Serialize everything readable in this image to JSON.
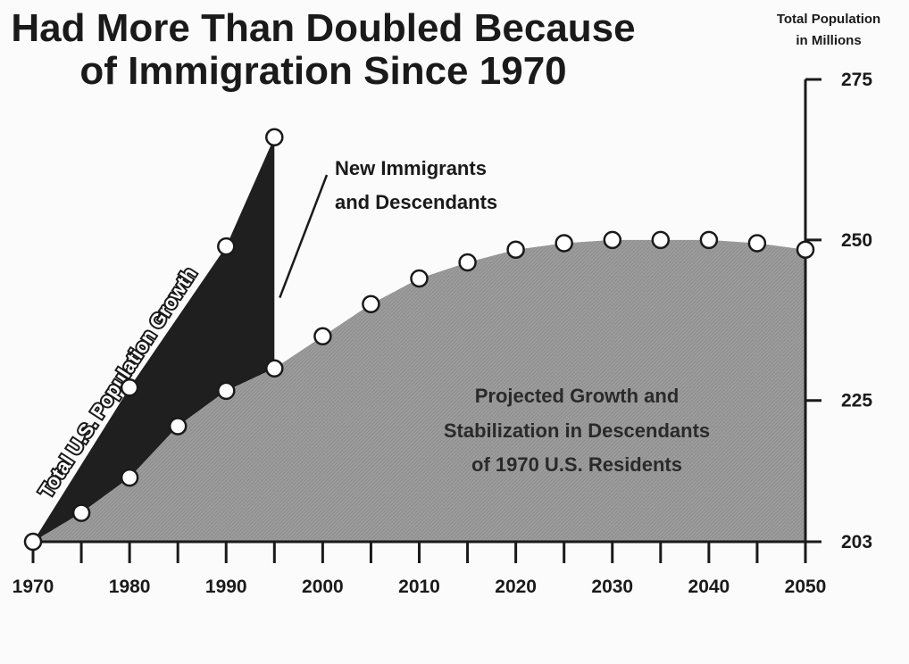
{
  "chart_data": {
    "type": "area",
    "title_lines": [
      "Had More Than Doubled Because",
      "of Immigration Since 1970"
    ],
    "ylabel_lines": [
      "Total Population",
      "in Millions"
    ],
    "x_ticks": [
      1970,
      1975,
      1980,
      1985,
      1990,
      1995,
      2000,
      2005,
      2010,
      2015,
      2020,
      2025,
      2030,
      2035,
      2040,
      2045,
      2050
    ],
    "x_tick_labels": [
      {
        "x": 1970,
        "label": "1970"
      },
      {
        "x": 1980,
        "label": "1980"
      },
      {
        "x": 1990,
        "label": "1990"
      },
      {
        "x": 2000,
        "label": "2000"
      },
      {
        "x": 2010,
        "label": "2010"
      },
      {
        "x": 2020,
        "label": "2020"
      },
      {
        "x": 2030,
        "label": "2030"
      },
      {
        "x": 2040,
        "label": "2040"
      },
      {
        "x": 2050,
        "label": "2050"
      }
    ],
    "y_ticks": [
      {
        "value": 203,
        "label": "203"
      },
      {
        "value": 225,
        "label": "225"
      },
      {
        "value": 250,
        "label": "250"
      },
      {
        "value": 275,
        "label": "275"
      }
    ],
    "xlim": [
      1970,
      2050
    ],
    "ylim": [
      203,
      275
    ],
    "series": [
      {
        "name": "Total U.S. Population Growth",
        "x": [
          1970,
          1980,
          1990,
          1995
        ],
        "y": [
          203,
          227,
          249,
          266
        ]
      },
      {
        "name": "Projected Growth and Stabilization in Descendants of 1970 U.S. Residents",
        "x": [
          1970,
          1975,
          1980,
          1985,
          1990,
          1995,
          2000,
          2005,
          2010,
          2015,
          2020,
          2025,
          2030,
          2035,
          2040,
          2045,
          2050
        ],
        "y": [
          203,
          207.5,
          213,
          221,
          226.5,
          230,
          235,
          240,
          244,
          246.5,
          248.5,
          249.5,
          250,
          250,
          250,
          249.5,
          248.5
        ]
      }
    ],
    "annotations": {
      "total_growth": "Total U.S. Population Growth",
      "immigrants": [
        "New Immigrants",
        "and Descendants"
      ],
      "projected": [
        "Projected Growth and",
        "Stabilization in Descendants",
        "of 1970 U.S. Residents"
      ]
    },
    "colors": {
      "immigrant_area": "#1f1f1f",
      "descendant_area": "#9c9c9c",
      "marker_fill": "#ffffff",
      "ink": "#1a1a1a"
    },
    "grid": false
  }
}
